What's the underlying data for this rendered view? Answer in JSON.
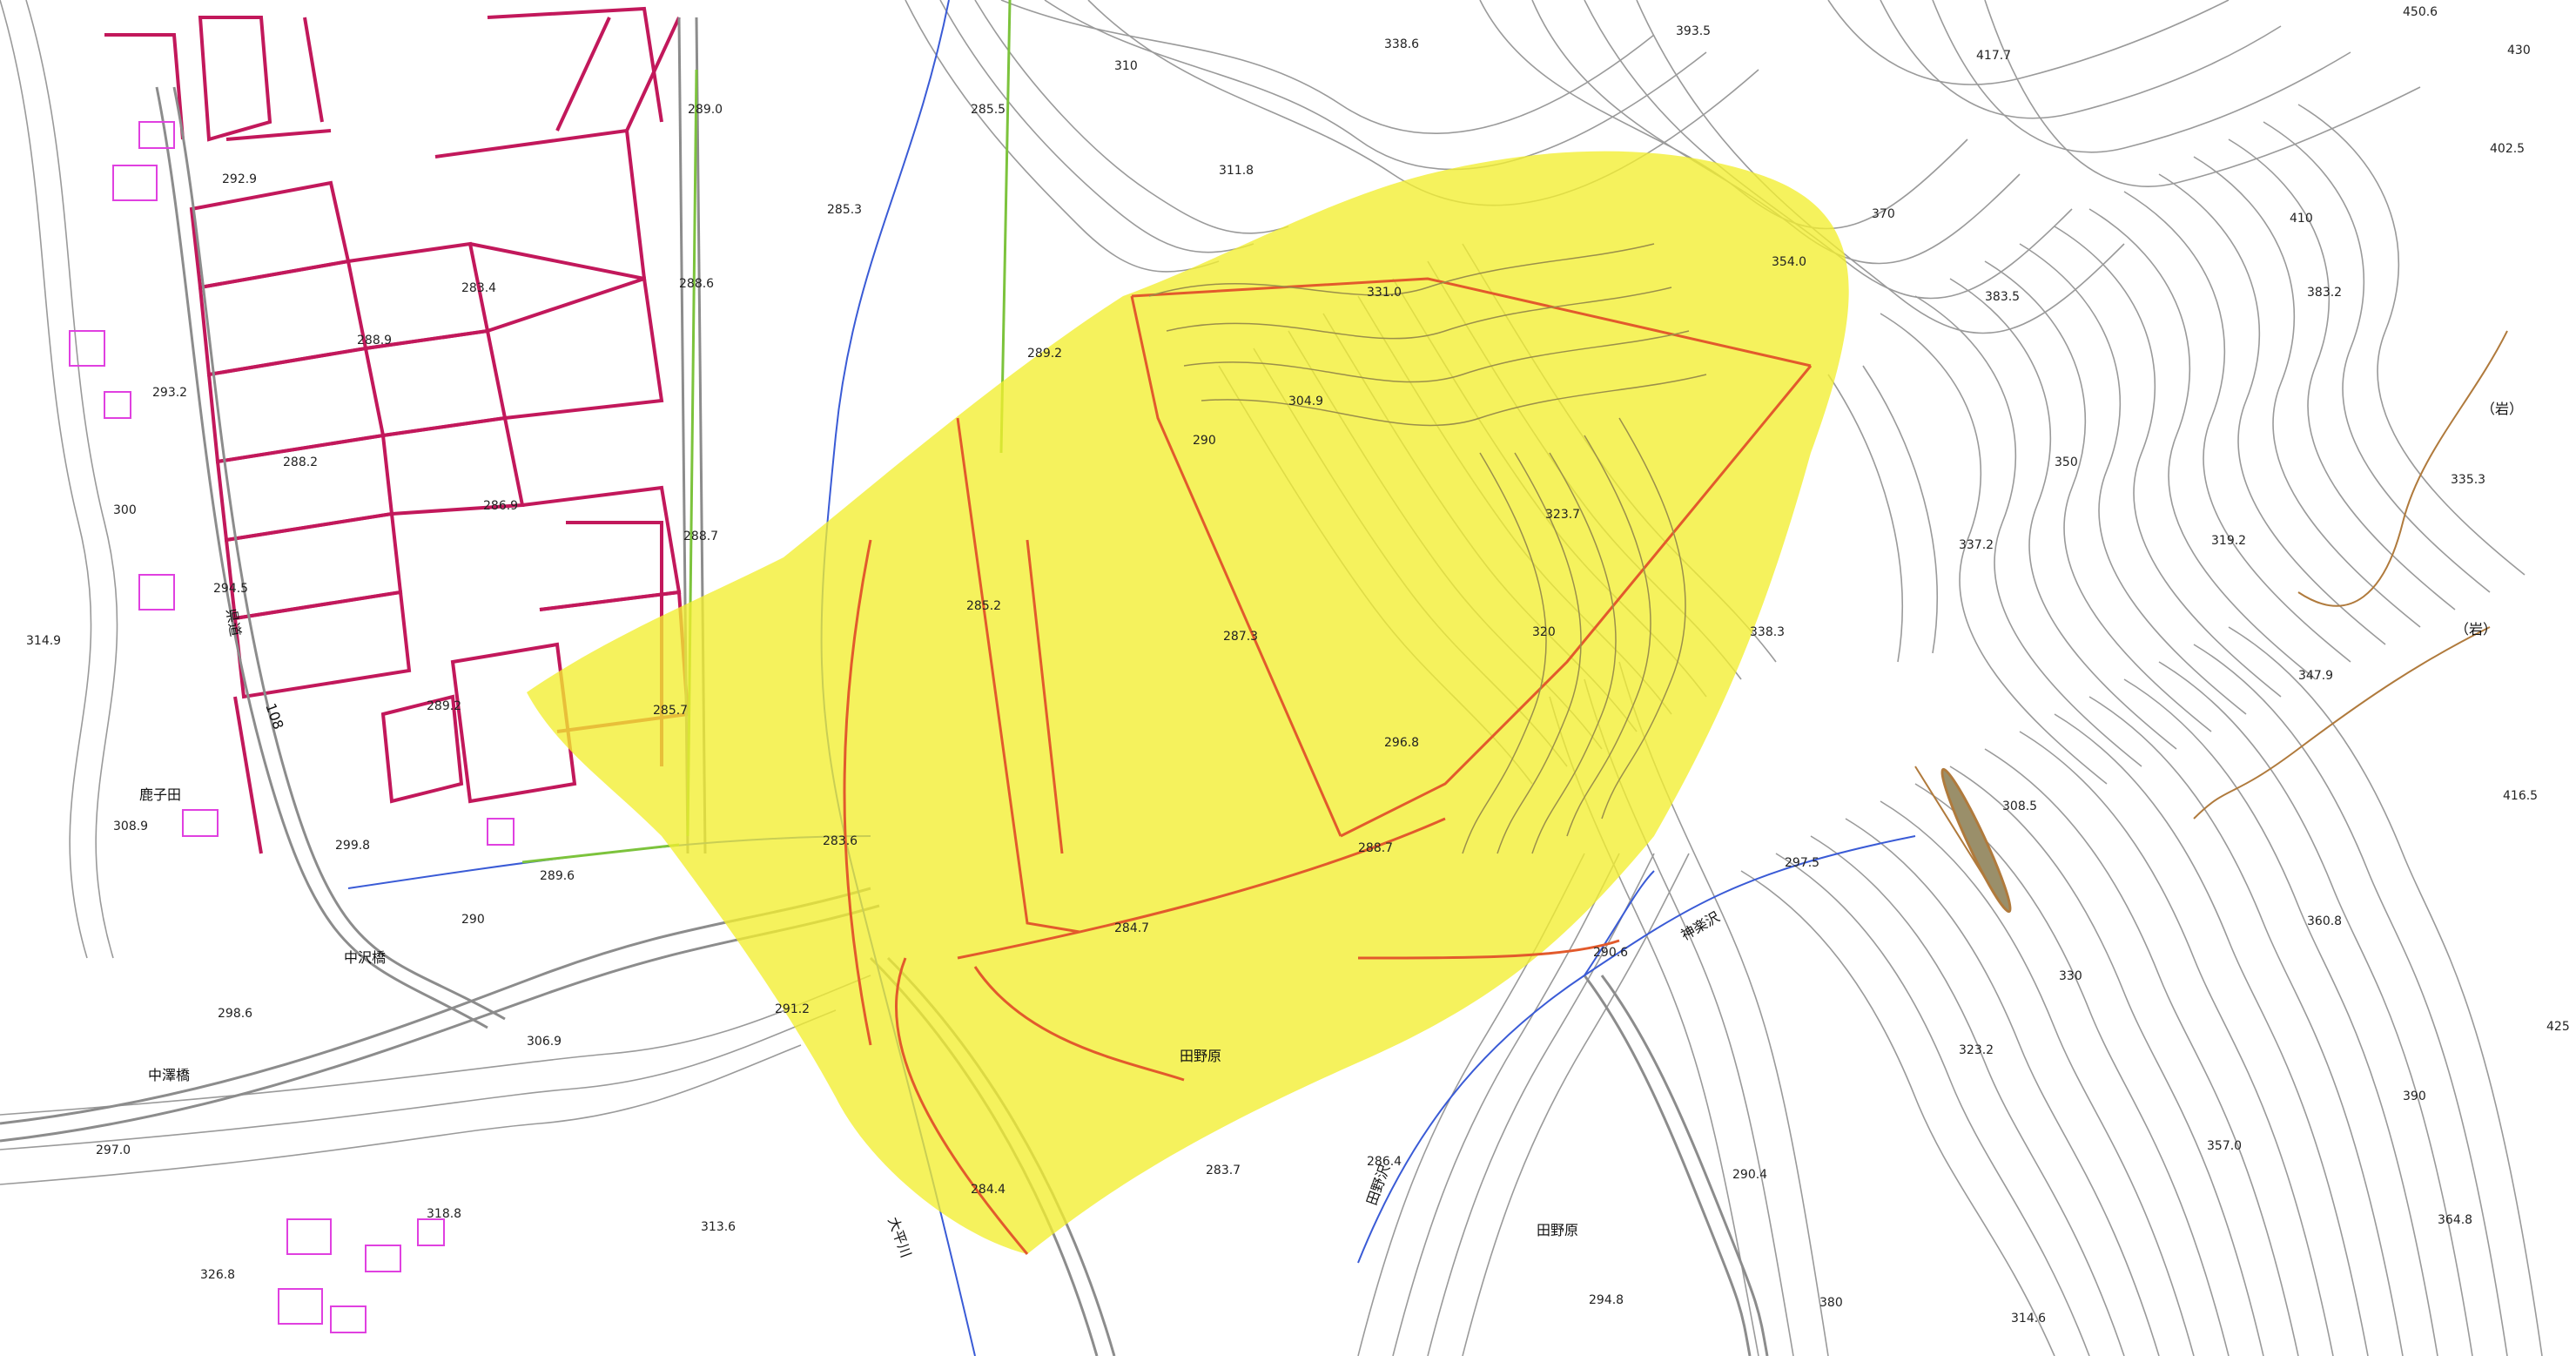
{
  "map": {
    "colors": {
      "background": "#ffffff",
      "contour": "#8f8f8f",
      "contour_index": "#6a6a6a",
      "parcel": "#c2185b",
      "road": "#8c8c8c",
      "river": "#3a5bd6",
      "highlight": "#f2ee2f",
      "ridge": "#e25a2c",
      "building": "#e040e0",
      "green_line": "#7cc33c",
      "brown_line": "#b07a3c"
    },
    "elevation_points": [
      "292.9",
      "289.0",
      "285.5",
      "338.6",
      "393.5",
      "450.6",
      "310",
      "283.4",
      "288.6",
      "285.3",
      "311.8",
      "417.7",
      "430",
      "402.5",
      "288.9",
      "293.2",
      "289.2",
      "331.0",
      "354.0",
      "410",
      "383.5",
      "383.2",
      "288.2",
      "304.9",
      "370",
      "290",
      "288.7",
      "285.2",
      "286.9",
      "323.7",
      "350",
      "337.2",
      "319.2",
      "335.3",
      "294.5",
      "287.3",
      "320",
      "338.3",
      "300",
      "314.9",
      "289.2",
      "285.7",
      "296.8",
      "347.9",
      "308.9",
      "299.8",
      "283.6",
      "288.7",
      "308.5",
      "416.5",
      "289.6",
      "297.5",
      "290",
      "284.7",
      "290.6",
      "360.8",
      "298.6",
      "291.2",
      "306.9",
      "330",
      "323.2",
      "425",
      "297.0",
      "313.6",
      "283.7",
      "284.4",
      "286.4",
      "290.4",
      "357.0",
      "390",
      "318.8",
      "326.8",
      "294.8",
      "314.6",
      "364.8",
      "380"
    ],
    "place_names": {
      "nakazawa_bridge_1": "中沢橋",
      "nakazawa_bridge_2": "中澤橋",
      "tanohara_1": "田野原",
      "tanohara_2": "田野原",
      "kamiho_sawa": "神楽沢",
      "rock_1": "（岩）",
      "rock_2": "（岩）",
      "shishida": "鹿子田",
      "road_108": "108",
      "road_kanji": "県道",
      "river_ohira": "大平川",
      "stream_tanosawa": "田野沢"
    }
  }
}
